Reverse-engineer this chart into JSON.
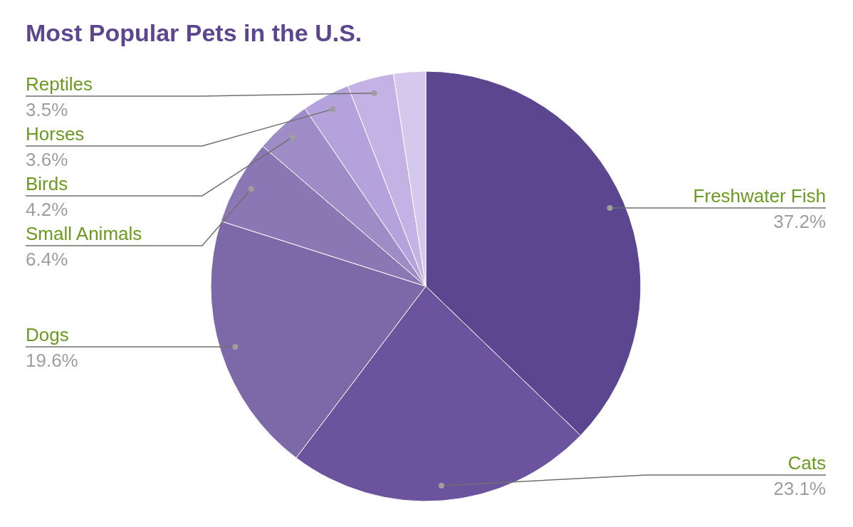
{
  "chart_data": {
    "type": "pie",
    "title": "Most Popular Pets in the U.S.",
    "categories": [
      "Freshwater Fish",
      "Cats",
      "Dogs",
      "Small Animals",
      "Birds",
      "Horses",
      "Reptiles",
      null
    ],
    "values": [
      37.2,
      23.1,
      19.6,
      6.4,
      4.2,
      3.6,
      3.5,
      2.4
    ],
    "value_labels": [
      "37.2%",
      "23.1%",
      "19.6%",
      "6.4%",
      "4.2%",
      "3.6%",
      "3.5%",
      null
    ],
    "colors": [
      "#5c4690",
      "#6c539e",
      "#7e69a8",
      "#8a77b4",
      "#9d8cc6",
      "#b3a2dc",
      "#c3b2e3",
      "#d4c8ec"
    ]
  }
}
